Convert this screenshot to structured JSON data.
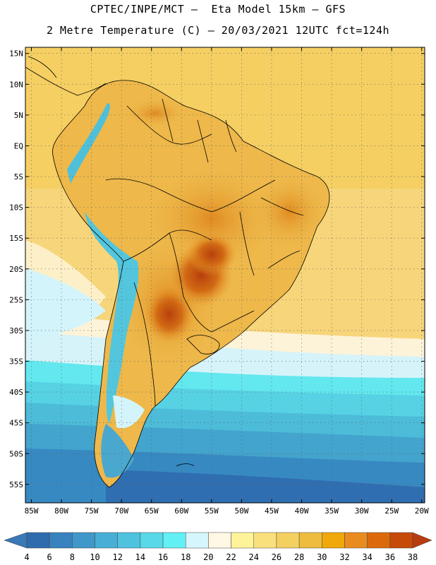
{
  "header": {
    "title_line1": "CPTEC/INPE/MCT –  Eta Model 15km – GFS",
    "title_line2": "2 Metre Temperature (C) – 20/03/2021 12UTC fct=124h"
  },
  "map": {
    "lat_range": [
      -58,
      16
    ],
    "lon_range": [
      -86,
      -19.5
    ],
    "lat_ticks": [
      {
        "value": 15,
        "label": "15N"
      },
      {
        "value": 10,
        "label": "10N"
      },
      {
        "value": 5,
        "label": "5N"
      },
      {
        "value": 0,
        "label": "EQ"
      },
      {
        "value": -5,
        "label": "5S"
      },
      {
        "value": -10,
        "label": "10S"
      },
      {
        "value": -15,
        "label": "15S"
      },
      {
        "value": -20,
        "label": "20S"
      },
      {
        "value": -25,
        "label": "25S"
      },
      {
        "value": -30,
        "label": "30S"
      },
      {
        "value": -35,
        "label": "35S"
      },
      {
        "value": -40,
        "label": "40S"
      },
      {
        "value": -45,
        "label": "45S"
      },
      {
        "value": -50,
        "label": "50S"
      },
      {
        "value": -55,
        "label": "55S"
      }
    ],
    "lon_ticks": [
      {
        "value": -85,
        "label": "85W"
      },
      {
        "value": -80,
        "label": "80W"
      },
      {
        "value": -75,
        "label": "75W"
      },
      {
        "value": -70,
        "label": "70W"
      },
      {
        "value": -65,
        "label": "65W"
      },
      {
        "value": -60,
        "label": "60W"
      },
      {
        "value": -55,
        "label": "55W"
      },
      {
        "value": -50,
        "label": "50W"
      },
      {
        "value": -45,
        "label": "45W"
      },
      {
        "value": -40,
        "label": "40W"
      },
      {
        "value": -35,
        "label": "35W"
      },
      {
        "value": -30,
        "label": "30W"
      },
      {
        "value": -25,
        "label": "25W"
      },
      {
        "value": -20,
        "label": "20W"
      }
    ]
  },
  "colorbar": {
    "low_color": "#3a78b6",
    "high_color": "#b83c10",
    "bins": [
      {
        "color": "#2e6cae"
      },
      {
        "color": "#3782bf"
      },
      {
        "color": "#3f98c9"
      },
      {
        "color": "#48aed6"
      },
      {
        "color": "#4fc2de"
      },
      {
        "color": "#58d8e8"
      },
      {
        "color": "#62f0f5"
      },
      {
        "color": "#d4f6fc"
      },
      {
        "color": "#fff8e4"
      },
      {
        "color": "#fff39a"
      },
      {
        "color": "#fae07c"
      },
      {
        "color": "#f4d060"
      },
      {
        "color": "#eebc3e"
      },
      {
        "color": "#f1a80a"
      },
      {
        "color": "#e98c20"
      },
      {
        "color": "#dc6a0c"
      },
      {
        "color": "#c64a08"
      }
    ],
    "labels": [
      "4",
      "6",
      "8",
      "10",
      "12",
      "14",
      "16",
      "18",
      "20",
      "22",
      "24",
      "26",
      "28",
      "30",
      "32",
      "34",
      "36",
      "38"
    ]
  }
}
